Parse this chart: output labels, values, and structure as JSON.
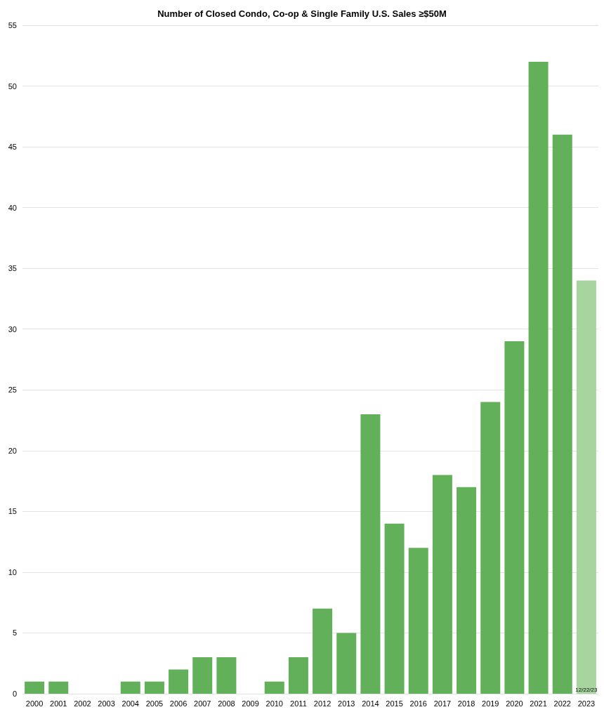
{
  "chart_data": {
    "type": "bar",
    "title": "Number of Closed Condo, Co-op & Single Family U.S. Sales ≥$50M",
    "categories": [
      "2000",
      "2001",
      "2002",
      "2003",
      "2004",
      "2005",
      "2006",
      "2007",
      "2008",
      "2009",
      "2010",
      "2011",
      "2012",
      "2013",
      "2014",
      "2015",
      "2016",
      "2017",
      "2018",
      "2019",
      "2020",
      "2021",
      "2022",
      "2023"
    ],
    "values": [
      1,
      1,
      0,
      0,
      1,
      1,
      2,
      3,
      3,
      0,
      1,
      3,
      7,
      5,
      23,
      14,
      12,
      18,
      17,
      24,
      29,
      52,
      46,
      34
    ],
    "colors": [
      "#63b05a",
      "#63b05a",
      "#63b05a",
      "#63b05a",
      "#63b05a",
      "#63b05a",
      "#63b05a",
      "#63b05a",
      "#63b05a",
      "#63b05a",
      "#63b05a",
      "#63b05a",
      "#63b05a",
      "#63b05a",
      "#63b05a",
      "#63b05a",
      "#63b05a",
      "#63b05a",
      "#63b05a",
      "#63b05a",
      "#63b05a",
      "#63b05a",
      "#63b05a",
      "#a8d4a0"
    ],
    "ylim": [
      0,
      55
    ],
    "yticks": [
      0,
      5,
      10,
      15,
      20,
      25,
      30,
      35,
      40,
      45,
      50,
      55
    ],
    "grid": "y",
    "annotations": [
      {
        "text": "12/22/23",
        "x": "2023",
        "y": 0
      }
    ]
  }
}
